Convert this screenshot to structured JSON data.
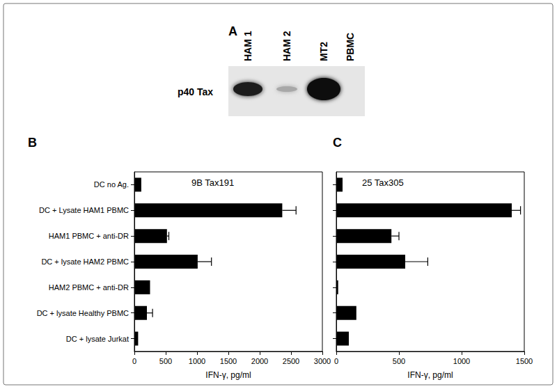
{
  "panel_a": {
    "label": "A",
    "band_label": "p40 Tax",
    "lanes": [
      "HAM 1",
      "HAM 2",
      "MT2",
      "PBMC"
    ]
  },
  "chart_data": [
    {
      "type": "bar",
      "panel": "B",
      "title": "9B Tax191",
      "orientation": "horizontal",
      "categories": [
        "DC no Ag.",
        "DC + Lysate HAM1 PBMC",
        "HAM1 PBMC + anti-DR",
        "DC + lysate HAM2 PBMC",
        "HAM2 PBMC + anti-DR",
        "DC + lysate Healthy PBMC",
        "DC + lysate Jurkat"
      ],
      "values": [
        110,
        2360,
        520,
        1010,
        250,
        200,
        60
      ],
      "errors": [
        null,
        220,
        30,
        220,
        null,
        90,
        null
      ],
      "color": "#000000",
      "xlabel": "IFN-γ, pg/ml",
      "xlim": [
        0,
        3000
      ],
      "xticks": [
        0,
        500,
        1000,
        1500,
        2000,
        2500,
        3000
      ],
      "grid": false
    },
    {
      "type": "bar",
      "panel": "C",
      "title": "25 Tax305",
      "orientation": "horizontal",
      "categories": [
        "DC no Ag.",
        "DC + Lysate HAM1 PBMC",
        "HAM1 PBMC + anti-DR",
        "DC + lysate HAM2 PBMC",
        "HAM2 PBMC + anti-DR",
        "DC + lysate Healthy PBMC",
        "DC + lysate Jurkat"
      ],
      "values": [
        50,
        1400,
        440,
        550,
        15,
        160,
        100
      ],
      "errors": [
        null,
        70,
        60,
        180,
        null,
        null,
        null
      ],
      "color": "#000000",
      "xlabel": "IFN-γ, pg/ml",
      "xlim": [
        0,
        1500
      ],
      "xticks": [
        0,
        500,
        1000,
        1500
      ],
      "grid": false,
      "tick_labels": "x"
    }
  ]
}
